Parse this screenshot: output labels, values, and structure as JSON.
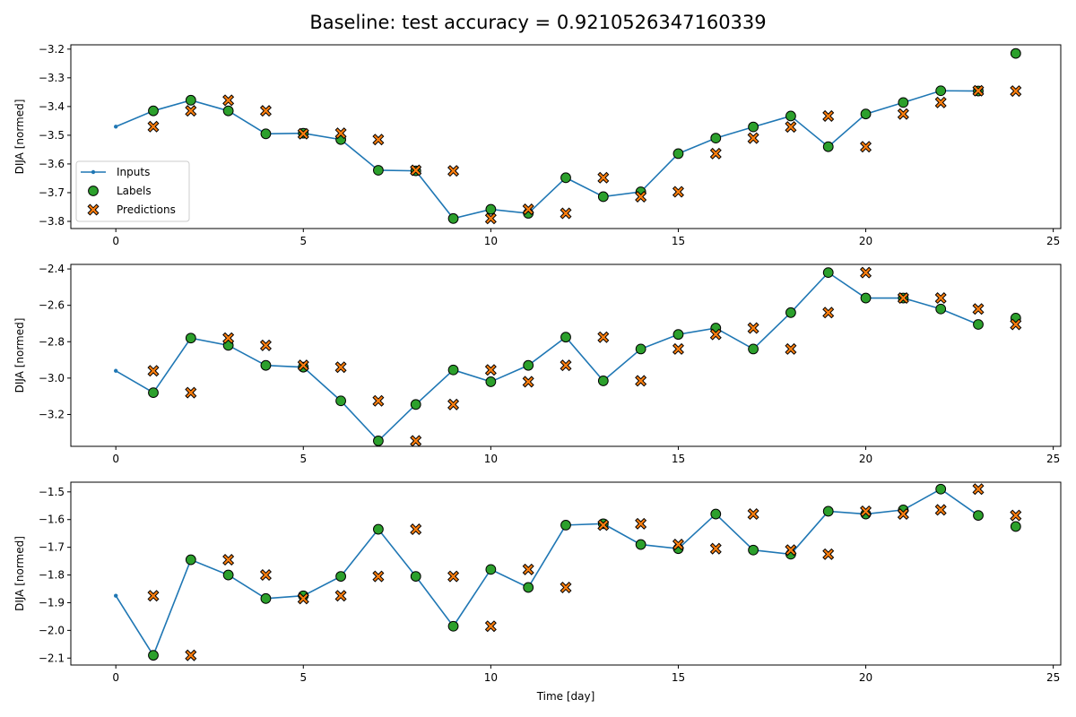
{
  "figure": {
    "title": "Baseline: test accuracy = 0.9210526347160339"
  },
  "colors": {
    "inputs": "#1f77b4",
    "labels": "#2ca02c",
    "predictions": "#ff7f0e",
    "edge": "#000000"
  },
  "chart_data": [
    {
      "type": "line",
      "title": "",
      "xlabel": "",
      "ylabel": "DIJA [normed]",
      "xlim": [
        -1.2,
        25.2
      ],
      "ylim": [
        -3.825,
        -3.185
      ],
      "xticks": [
        0,
        5,
        10,
        15,
        20,
        25
      ],
      "yticks": [
        -3.8,
        -3.7,
        -3.6,
        -3.5,
        -3.4,
        -3.3,
        -3.2
      ],
      "ytick_labels": [
        "−3.8",
        "−3.7",
        "−3.6",
        "−3.5",
        "−3.4",
        "−3.3",
        "−3.2"
      ],
      "legend": {
        "placement": "lower-left",
        "entries": [
          "Inputs",
          "Labels",
          "Predictions"
        ]
      },
      "series": [
        {
          "kind": "inputs",
          "x": [
            0,
            1,
            2,
            3,
            4,
            5,
            6,
            7,
            8,
            9,
            10,
            11,
            12,
            13,
            14,
            15,
            16,
            17,
            18,
            19,
            20,
            21,
            22,
            23
          ],
          "values": [
            -3.47,
            -3.415,
            -3.378,
            -3.415,
            -3.495,
            -3.493,
            -3.515,
            -3.622,
            -3.624,
            -3.79,
            -3.758,
            -3.772,
            -3.648,
            -3.714,
            -3.697,
            -3.564,
            -3.51,
            -3.471,
            -3.433,
            -3.54,
            -3.426,
            -3.386,
            -3.345,
            -3.346
          ]
        },
        {
          "kind": "labels",
          "x": [
            1,
            2,
            3,
            4,
            5,
            6,
            7,
            8,
            9,
            10,
            11,
            12,
            13,
            14,
            15,
            16,
            17,
            18,
            19,
            20,
            21,
            22,
            23,
            24
          ],
          "values": [
            -3.415,
            -3.378,
            -3.415,
            -3.495,
            -3.493,
            -3.515,
            -3.622,
            -3.624,
            -3.79,
            -3.758,
            -3.772,
            -3.648,
            -3.714,
            -3.697,
            -3.564,
            -3.51,
            -3.471,
            -3.433,
            -3.54,
            -3.426,
            -3.386,
            -3.345,
            -3.346,
            -3.215
          ]
        },
        {
          "kind": "predictions",
          "x": [
            1,
            2,
            3,
            4,
            5,
            6,
            7,
            8,
            9,
            10,
            11,
            12,
            13,
            14,
            15,
            16,
            17,
            18,
            19,
            20,
            21,
            22,
            23,
            24
          ],
          "values": [
            -3.47,
            -3.415,
            -3.378,
            -3.415,
            -3.495,
            -3.493,
            -3.515,
            -3.622,
            -3.624,
            -3.79,
            -3.758,
            -3.772,
            -3.648,
            -3.714,
            -3.697,
            -3.564,
            -3.51,
            -3.471,
            -3.433,
            -3.54,
            -3.426,
            -3.386,
            -3.345,
            -3.346
          ]
        }
      ]
    },
    {
      "type": "line",
      "title": "",
      "xlabel": "",
      "ylabel": "DIJA [normed]",
      "xlim": [
        -1.2,
        25.2
      ],
      "ylim": [
        -3.375,
        -2.375
      ],
      "xticks": [
        0,
        5,
        10,
        15,
        20,
        25
      ],
      "yticks": [
        -3.2,
        -3.0,
        -2.8,
        -2.6,
        -2.4
      ],
      "ytick_labels": [
        "−3.2",
        "−3.0",
        "−2.8",
        "−2.6",
        "−2.4"
      ],
      "series": [
        {
          "kind": "inputs",
          "x": [
            0,
            1,
            2,
            3,
            4,
            5,
            6,
            7,
            8,
            9,
            10,
            11,
            12,
            13,
            14,
            15,
            16,
            17,
            18,
            19,
            20,
            21,
            22,
            23
          ],
          "values": [
            -2.96,
            -3.08,
            -2.78,
            -2.82,
            -2.93,
            -2.94,
            -3.125,
            -3.345,
            -3.145,
            -2.955,
            -3.02,
            -2.93,
            -2.775,
            -3.015,
            -2.84,
            -2.76,
            -2.725,
            -2.84,
            -2.64,
            -2.42,
            -2.56,
            -2.56,
            -2.62,
            -2.705
          ]
        },
        {
          "kind": "labels",
          "x": [
            1,
            2,
            3,
            4,
            5,
            6,
            7,
            8,
            9,
            10,
            11,
            12,
            13,
            14,
            15,
            16,
            17,
            18,
            19,
            20,
            21,
            22,
            23,
            24
          ],
          "values": [
            -3.08,
            -2.78,
            -2.82,
            -2.93,
            -2.94,
            -3.125,
            -3.345,
            -3.145,
            -2.955,
            -3.02,
            -2.93,
            -2.775,
            -3.015,
            -2.84,
            -2.76,
            -2.725,
            -2.84,
            -2.64,
            -2.42,
            -2.56,
            -2.56,
            -2.62,
            -2.705,
            -2.67
          ]
        },
        {
          "kind": "predictions",
          "x": [
            1,
            2,
            3,
            4,
            5,
            6,
            7,
            8,
            9,
            10,
            11,
            12,
            13,
            14,
            15,
            16,
            17,
            18,
            19,
            20,
            21,
            22,
            23,
            24
          ],
          "values": [
            -2.96,
            -3.08,
            -2.78,
            -2.82,
            -2.93,
            -2.94,
            -3.125,
            -3.345,
            -3.145,
            -2.955,
            -3.02,
            -2.93,
            -2.775,
            -3.015,
            -2.84,
            -2.76,
            -2.725,
            -2.84,
            -2.64,
            -2.42,
            -2.56,
            -2.56,
            -2.62,
            -2.705
          ]
        }
      ]
    },
    {
      "type": "line",
      "title": "",
      "xlabel": "Time [day]",
      "ylabel": "DIJA [normed]",
      "xlim": [
        -1.2,
        25.2
      ],
      "ylim": [
        -2.125,
        -1.465
      ],
      "xticks": [
        0,
        5,
        10,
        15,
        20,
        25
      ],
      "yticks": [
        -2.1,
        -2.0,
        -1.9,
        -1.8,
        -1.7,
        -1.6,
        -1.5
      ],
      "ytick_labels": [
        "−2.1",
        "−2.0",
        "−1.9",
        "−1.8",
        "−1.7",
        "−1.6",
        "−1.5"
      ],
      "series": [
        {
          "kind": "inputs",
          "x": [
            0,
            1,
            2,
            3,
            4,
            5,
            6,
            7,
            8,
            9,
            10,
            11,
            12,
            13,
            14,
            15,
            16,
            17,
            18,
            19,
            20,
            21,
            22,
            23
          ],
          "values": [
            -1.875,
            -2.09,
            -1.745,
            -1.8,
            -1.885,
            -1.875,
            -1.805,
            -1.635,
            -1.805,
            -1.985,
            -1.78,
            -1.845,
            -1.62,
            -1.615,
            -1.69,
            -1.705,
            -1.58,
            -1.71,
            -1.725,
            -1.57,
            -1.58,
            -1.565,
            -1.49,
            -1.585
          ]
        },
        {
          "kind": "labels",
          "x": [
            1,
            2,
            3,
            4,
            5,
            6,
            7,
            8,
            9,
            10,
            11,
            12,
            13,
            14,
            15,
            16,
            17,
            18,
            19,
            20,
            21,
            22,
            23,
            24
          ],
          "values": [
            -2.09,
            -1.745,
            -1.8,
            -1.885,
            -1.875,
            -1.805,
            -1.635,
            -1.805,
            -1.985,
            -1.78,
            -1.845,
            -1.62,
            -1.615,
            -1.69,
            -1.705,
            -1.58,
            -1.71,
            -1.725,
            -1.57,
            -1.58,
            -1.565,
            -1.49,
            -1.585,
            -1.625
          ]
        },
        {
          "kind": "predictions",
          "x": [
            1,
            2,
            3,
            4,
            5,
            6,
            7,
            8,
            9,
            10,
            11,
            12,
            13,
            14,
            15,
            16,
            17,
            18,
            19,
            20,
            21,
            22,
            23,
            24
          ],
          "values": [
            -1.875,
            -2.09,
            -1.745,
            -1.8,
            -1.885,
            -1.875,
            -1.805,
            -1.635,
            -1.805,
            -1.985,
            -1.78,
            -1.845,
            -1.62,
            -1.615,
            -1.69,
            -1.705,
            -1.58,
            -1.71,
            -1.725,
            -1.57,
            -1.58,
            -1.565,
            -1.49,
            -1.585
          ]
        }
      ]
    }
  ]
}
